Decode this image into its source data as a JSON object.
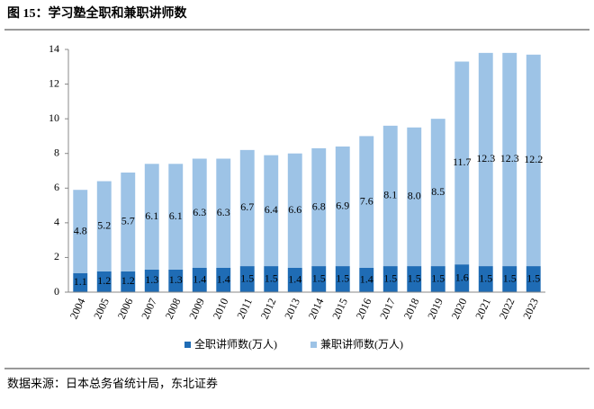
{
  "chart_data": {
    "type": "stacked_bar",
    "title": "图 15：学习塾全职和兼职讲师数",
    "source": "数据来源：日本总务省统计局，东北证券",
    "categories": [
      "2004",
      "2005",
      "2006",
      "2007",
      "2008",
      "2009",
      "2010",
      "2011",
      "2012",
      "2013",
      "2014",
      "2015",
      "2016",
      "2017",
      "2018",
      "2019",
      "2020",
      "2021",
      "2022",
      "2023"
    ],
    "series": [
      {
        "name": "全职讲师数(万人)",
        "color": "#1f6cb5",
        "values": [
          1.1,
          1.2,
          1.2,
          1.3,
          1.3,
          1.4,
          1.4,
          1.5,
          1.5,
          1.4,
          1.5,
          1.5,
          1.4,
          1.5,
          1.5,
          1.5,
          1.6,
          1.5,
          1.5,
          1.5
        ],
        "value_labels": [
          "1.1",
          "1.2",
          "1.2",
          "1.3",
          "1.3",
          "1.4",
          "1.4",
          "1.5",
          "1.5",
          "1.4",
          "1.5",
          "1.5",
          "1.4",
          "1.5",
          "1.5",
          "1.5",
          "1.6",
          "1.5",
          "1.5",
          "1.5"
        ]
      },
      {
        "name": "兼职讲师数(万人)",
        "color": "#9dc3e6",
        "values": [
          4.8,
          5.2,
          5.7,
          6.1,
          6.1,
          6.3,
          6.3,
          6.7,
          6.4,
          6.6,
          6.8,
          6.9,
          7.6,
          8.1,
          8.0,
          8.5,
          11.7,
          12.3,
          12.3,
          12.2
        ],
        "value_labels": [
          "4.8",
          "5.2",
          "5.7",
          "6.1",
          "6.1",
          "6.3",
          "6.3",
          "6.7",
          "6.4",
          "6.6",
          "6.8",
          "6.9",
          "7.6",
          "8.1",
          "8.0",
          "8.5",
          "11.7",
          "12.3",
          "12.3",
          "12.2"
        ]
      }
    ],
    "ylim": [
      0,
      14
    ],
    "yticks": [
      0,
      2,
      4,
      6,
      8,
      10,
      12,
      14
    ],
    "legend": "bottom"
  }
}
